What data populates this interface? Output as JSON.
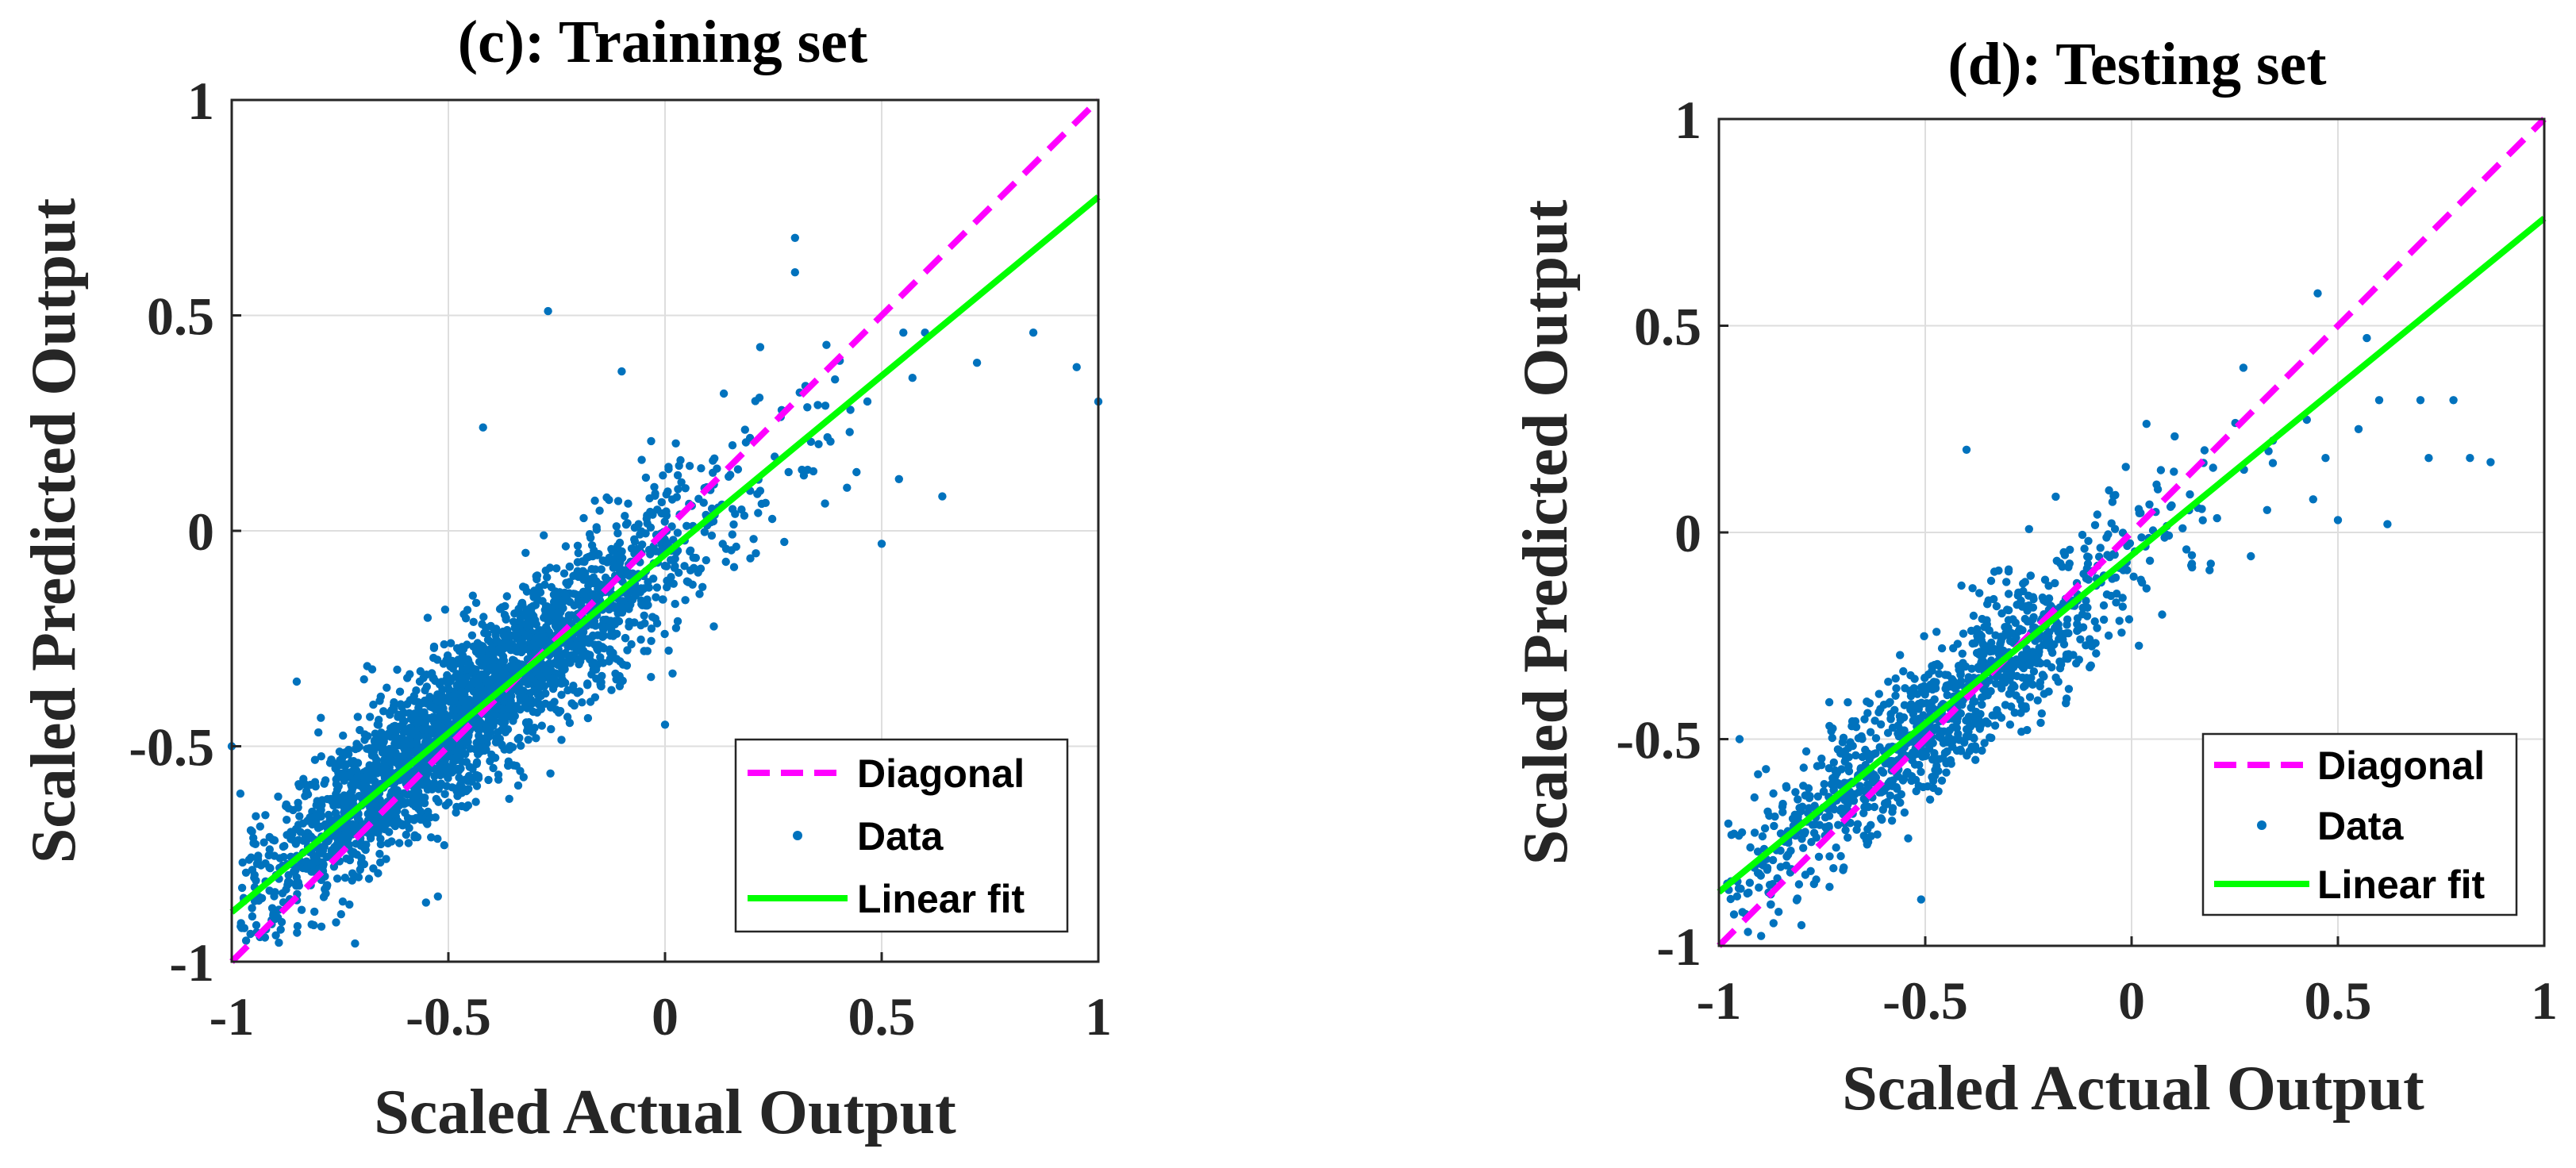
{
  "chart_data": [
    {
      "type": "scatter",
      "title": "(c): Training set",
      "xlabel": "Scaled Actual Output",
      "ylabel": "Scaled Predicted Output",
      "xlim": [
        -1,
        1
      ],
      "ylim": [
        -1,
        1
      ],
      "xticks": [
        "-1",
        "-0.5",
        "0",
        "0.5",
        "1"
      ],
      "yticks": [
        "-1",
        "-0.5",
        "0",
        "0.5",
        "1"
      ],
      "grid": true,
      "legend_position": "bottom-right",
      "legend": [
        "Diagonal",
        "Data",
        "Linear fit"
      ],
      "series": [
        {
          "name": "Diagonal",
          "kind": "line",
          "style": "dashed",
          "color": "#ff00ff",
          "x": [
            -1,
            1
          ],
          "y": [
            -1,
            1
          ]
        },
        {
          "name": "Data",
          "kind": "scatter",
          "color": "#0072bd",
          "n_points": 2600,
          "x_range": [
            -1,
            1
          ],
          "approx_slope": 0.82,
          "approx_intercept": -0.05,
          "spread": 0.09,
          "outliers": [
            [
              -0.27,
              0.51
            ],
            [
              0.3,
              0.68
            ],
            [
              0.3,
              0.6
            ],
            [
              0.85,
              0.46
            ],
            [
              0.95,
              0.38
            ],
            [
              1.0,
              0.3
            ],
            [
              0.6,
              0.46
            ],
            [
              0.54,
              0.12
            ],
            [
              0.42,
              0.1
            ],
            [
              0.5,
              -0.03
            ],
            [
              -0.42,
              0.24
            ],
            [
              -0.85,
              -0.35
            ],
            [
              -0.98,
              -0.61
            ],
            [
              -1.0,
              -0.5
            ],
            [
              0.0,
              -0.45
            ],
            [
              0.55,
              0.46
            ],
            [
              0.72,
              0.39
            ],
            [
              0.64,
              0.08
            ],
            [
              -0.1,
              0.37
            ]
          ]
        },
        {
          "name": "Linear fit",
          "kind": "line",
          "style": "solid",
          "color": "#00ff00",
          "x": [
            -1,
            1
          ],
          "y": [
            -0.885,
            0.775
          ]
        }
      ]
    },
    {
      "type": "scatter",
      "title": "(d): Testing set",
      "xlabel": "Scaled Actual Output",
      "ylabel": "Scaled Predicted Output",
      "xlim": [
        -1,
        1
      ],
      "ylim": [
        -1,
        1
      ],
      "xticks": [
        "-1",
        "-0.5",
        "0",
        "0.5",
        "1"
      ],
      "yticks": [
        "-1",
        "-0.5",
        "0",
        "0.5",
        "1"
      ],
      "grid": true,
      "legend_position": "bottom-right",
      "legend": [
        "Diagonal",
        "Data",
        "Linear fit"
      ],
      "series": [
        {
          "name": "Diagonal",
          "kind": "line",
          "style": "dashed",
          "color": "#ff00ff",
          "x": [
            -1,
            1
          ],
          "y": [
            -1,
            1
          ]
        },
        {
          "name": "Data",
          "kind": "scatter",
          "color": "#0072bd",
          "n_points": 1100,
          "x_range": [
            -1,
            1
          ],
          "approx_slope": 0.82,
          "approx_intercept": -0.06,
          "spread": 0.09,
          "outliers": [
            [
              0.6,
              0.32
            ],
            [
              0.7,
              0.32
            ],
            [
              0.78,
              0.32
            ],
            [
              0.82,
              0.18
            ],
            [
              0.87,
              0.17
            ],
            [
              0.62,
              0.02
            ],
            [
              0.57,
              0.47
            ],
            [
              0.55,
              0.25
            ],
            [
              -0.4,
              0.2
            ],
            [
              -0.95,
              -0.5
            ],
            [
              -0.8,
              -0.95
            ],
            [
              0.44,
              0.08
            ],
            [
              0.5,
              0.03
            ],
            [
              0.72,
              0.18
            ],
            [
              0.47,
              0.18
            ]
          ]
        },
        {
          "name": "Linear fit",
          "kind": "line",
          "style": "solid",
          "color": "#00ff00",
          "x": [
            -1,
            1
          ],
          "y": [
            -0.87,
            0.76
          ]
        }
      ]
    }
  ]
}
